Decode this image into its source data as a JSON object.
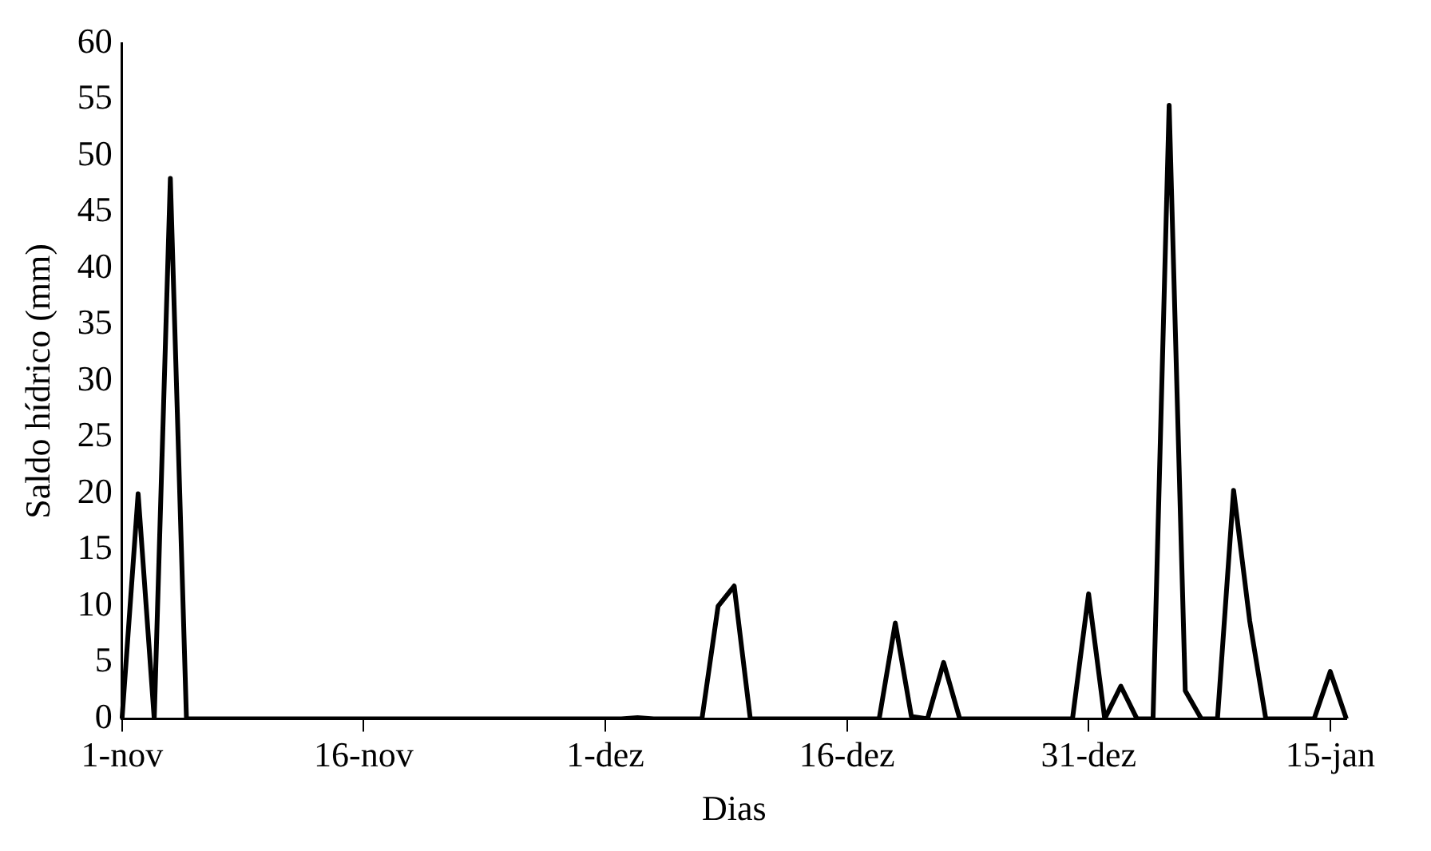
{
  "chart_data": {
    "type": "line",
    "xlabel": "Dias",
    "ylabel": "Saldo hídrico (mm)",
    "categories": [
      "1-nov",
      null,
      null,
      null,
      null,
      null,
      null,
      null,
      null,
      null,
      null,
      null,
      null,
      null,
      null,
      "16-nov",
      null,
      null,
      null,
      null,
      null,
      null,
      null,
      null,
      null,
      null,
      null,
      null,
      null,
      null,
      "1-dez",
      null,
      null,
      null,
      null,
      null,
      null,
      null,
      null,
      null,
      null,
      null,
      null,
      null,
      null,
      "16-dez",
      null,
      null,
      null,
      null,
      null,
      null,
      null,
      null,
      null,
      null,
      null,
      null,
      null,
      null,
      "31-dez",
      null,
      null,
      null,
      null,
      null,
      null,
      null,
      null,
      null,
      null,
      null,
      null,
      null,
      null,
      "15-jan",
      null
    ],
    "series": [
      {
        "color": "#000000",
        "values": [
          0,
          20,
          0,
          48,
          0,
          0,
          0,
          0,
          0,
          0,
          0,
          0,
          0,
          0,
          0,
          0,
          0,
          0,
          0,
          0,
          0,
          0,
          0,
          0,
          0,
          0,
          0,
          0,
          0,
          0,
          0,
          0,
          0.1,
          0,
          0,
          0,
          0,
          10,
          11.8,
          0,
          0,
          0,
          0,
          0,
          0,
          0,
          0,
          0,
          8.5,
          0.2,
          0,
          5,
          0,
          0,
          0,
          0,
          0,
          0,
          0,
          0,
          11.1,
          0,
          2.9,
          0,
          0,
          54.5,
          2.5,
          0,
          0,
          20.3,
          8.7,
          0,
          0,
          0,
          0,
          4.2,
          0
        ]
      }
    ],
    "ylim": [
      0,
      60
    ],
    "yticks": [
      0,
      5,
      10,
      15,
      20,
      25,
      30,
      35,
      40,
      45,
      50,
      55,
      60
    ],
    "grid": false,
    "legend": false,
    "marker": "none",
    "line_style": "solid"
  }
}
